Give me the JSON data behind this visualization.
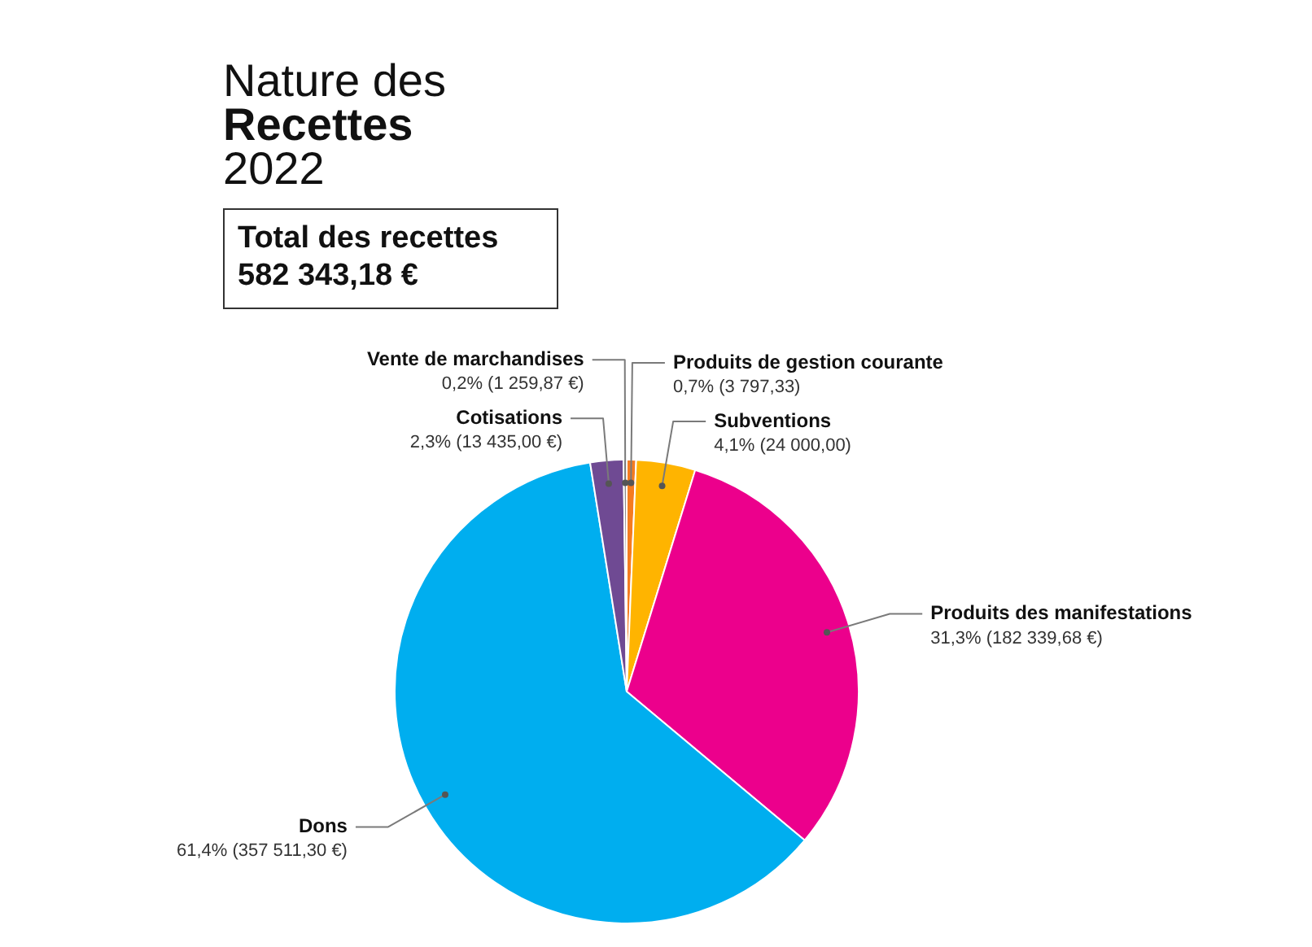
{
  "chart_data": {
    "type": "pie",
    "title": "Nature des Recettes",
    "subtitle": "2022",
    "annotations": [
      "Total des recettes",
      "582 343,18 €"
    ],
    "categories": [
      "Produits de gestion courante",
      "Subventions",
      "Produits des manifestations",
      "Dons",
      "Cotisations",
      "Vente de marchandises"
    ],
    "values": [
      3797.33,
      24000,
      182339.68,
      357511.3,
      13435,
      1259.87
    ],
    "colors": [
      "#f57c20",
      "#ffb400",
      "#ec008c",
      "#00aeef",
      "#6f4a93",
      "#8a8a8a"
    ],
    "value_labels": [
      "0,7% (3 797,33)",
      "4,1% (24 000,00)",
      "31,3% (182 339,68 €)",
      "61,4% (357 511,30 €)",
      "2,3% (13 435,00 €)",
      "0,2% (1 259,87 €)"
    ]
  }
}
